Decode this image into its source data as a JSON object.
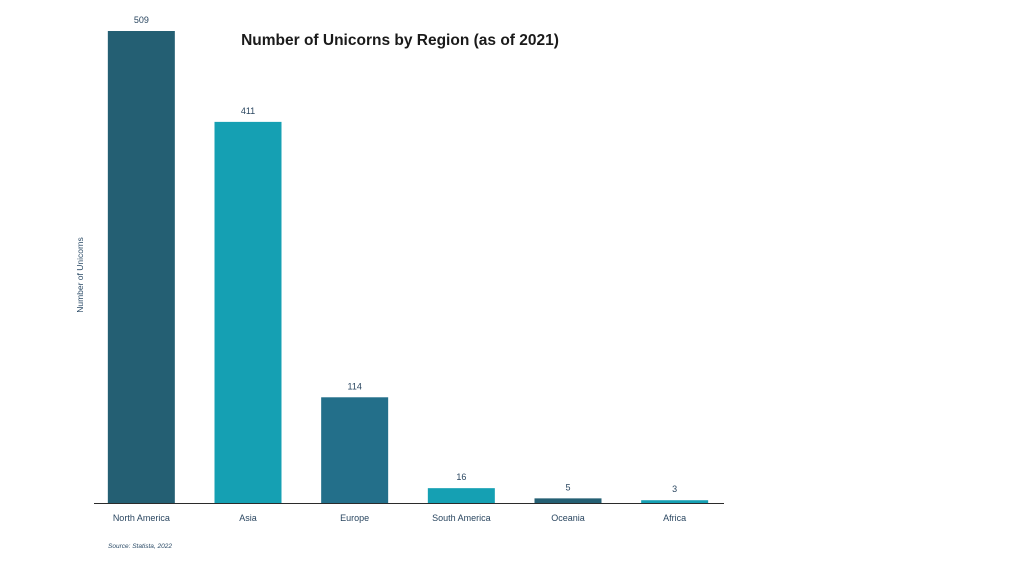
{
  "chart_data": {
    "type": "bar",
    "title": "Number of Unicorns by Region (as of 2021)",
    "ylabel": "Number of Unicorns",
    "xlabel": "",
    "categories": [
      "North America",
      "Asia",
      "Europe",
      "South America",
      "Oceania",
      "Africa"
    ],
    "values": [
      509,
      411,
      114,
      16,
      5,
      3
    ],
    "ylim": [
      0,
      509
    ],
    "grid": false,
    "legend": "none",
    "bar_colors": [
      "#245f73",
      "#15a0b3",
      "#236f8a",
      "#15a0b3",
      "#245f73",
      "#15a0b3"
    ],
    "source": "Source: Statista, 2022"
  }
}
